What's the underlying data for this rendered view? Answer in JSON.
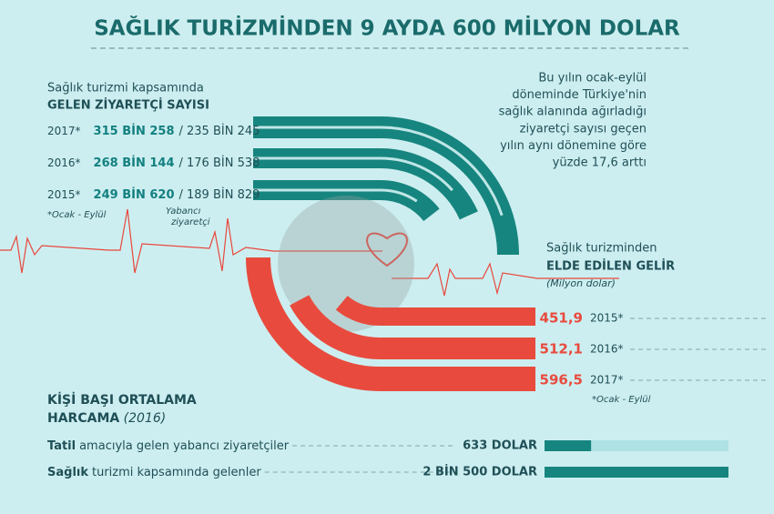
{
  "title": "SAĞLIK TURİZMİNDEN 9 AYDA 600 MİLYON DOLAR",
  "visitors": {
    "label_1": "Sağlık turizmi kapsamında",
    "label_2": "GELEN ZİYARETÇİ SAYISI",
    "rows": [
      {
        "year": "2017*",
        "total": "315 BİN 258",
        "foreign": "/ 235 BİN 245"
      },
      {
        "year": "2016*",
        "total": "268 BİN 144",
        "foreign": "/ 176 BİN 538"
      },
      {
        "year": "2015*",
        "total": "249 BİN 620",
        "foreign": "/ 189 BİN 829"
      }
    ],
    "note": "*Ocak - Eylül",
    "legend_1": "Yabancı",
    "legend_2": "ziyaretçi"
  },
  "side_note": [
    "Bu yılın ocak-eylül",
    "döneminde Türkiye'nin",
    "sağlık alanında ağırladığı",
    "ziyaretçi sayısı geçen",
    "yılın aynı dönemine göre",
    "yüzde 17,6 arttı"
  ],
  "income": {
    "label_1": "Sağlık turizminden",
    "label_2": "ELDE EDİLEN GELİR",
    "unit": "(Milyon dolar)",
    "rows": [
      {
        "value": "451,9",
        "year": "2015*"
      },
      {
        "value": "512,1",
        "year": "2016*"
      },
      {
        "value": "596,5",
        "year": "2017*"
      }
    ],
    "note": "*Ocak - Eylül"
  },
  "spending": {
    "title_1": "KİŞİ BAŞI ORTALAMA",
    "title_2": "HARCAMA",
    "year": "(2016)",
    "rows": [
      {
        "bold": "Tatil",
        "rest": "amacıyla gelen yabancı ziyaretçiler",
        "value": 633,
        "label": "633 DOLAR"
      },
      {
        "bold": "Sağlık",
        "rest": "turizmi kapsamında gelenler",
        "value": 2500,
        "label": "2 BİN 500 DOLAR"
      }
    ]
  }
}
